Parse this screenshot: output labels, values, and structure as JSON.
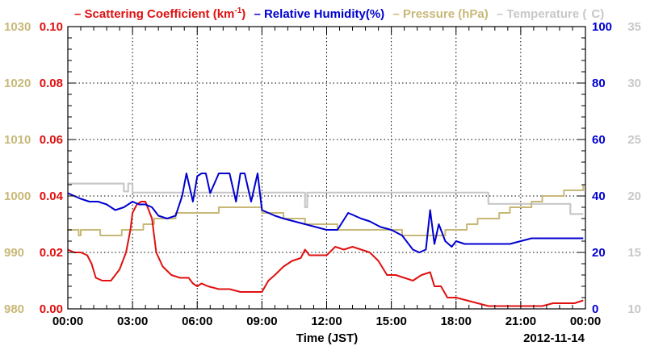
{
  "chart_data": {
    "type": "line",
    "x_range": [
      "00:00",
      "24:00"
    ],
    "x_ticks": [
      "00:00",
      "03:00",
      "06:00",
      "09:00",
      "12:00",
      "15:00",
      "18:00",
      "21:00",
      "00:00"
    ],
    "xlabel": "Time (JST)",
    "date_label": "2012-11-14",
    "axes": {
      "pressure": {
        "min": 980,
        "max": 1030,
        "ticks": [
          "980",
          "990",
          "1000",
          "1010",
          "1020",
          "1030"
        ],
        "color": "#c8b878"
      },
      "scattering": {
        "min": 0,
        "max": 0.1,
        "ticks": [
          "0.00",
          "0.02",
          "0.04",
          "0.06",
          "0.08",
          "0.10"
        ],
        "color": "#e01010"
      },
      "humidity": {
        "min": 0,
        "max": 100,
        "ticks": [
          "0",
          "20",
          "40",
          "60",
          "80",
          "100"
        ],
        "color": "#0000d0"
      },
      "temperature": {
        "min": 10,
        "max": 35,
        "ticks": [
          "10",
          "15",
          "20",
          "25",
          "30",
          "35"
        ],
        "color": "#c8c8c8"
      }
    },
    "grid": true,
    "legend": {
      "prefix": "– ",
      "scattering_main": "Scattering Coefficient (km",
      "scattering_sup": "-1",
      "scattering_end": ")",
      "humidity": "– Relative Humidity(%)",
      "pressure": "– Pressure (hPa)",
      "temperature": "– Temperature (",
      "temperature_end": "C)"
    },
    "series": [
      {
        "name": "Scattering Coefficient (km-1)",
        "axis": "scattering",
        "color": "#e01010",
        "x": [
          0.0,
          0.3,
          0.6,
          0.9,
          1.1,
          1.3,
          1.6,
          2.0,
          2.2,
          2.4,
          2.7,
          2.9,
          3.0,
          3.2,
          3.4,
          3.6,
          3.8,
          3.9,
          4.1,
          4.4,
          4.8,
          5.2,
          5.6,
          5.8,
          6.0,
          6.2,
          6.5,
          7.0,
          7.5,
          8.0,
          8.5,
          9.0,
          9.3,
          9.6,
          10.0,
          10.4,
          10.8,
          11.0,
          11.2,
          11.6,
          12.0,
          12.4,
          12.8,
          13.2,
          13.6,
          14.0,
          14.4,
          14.8,
          15.2,
          15.6,
          16.0,
          16.4,
          16.8,
          17.0,
          17.3,
          17.6,
          18.0,
          18.5,
          19.0,
          19.5,
          20.0,
          20.5,
          21.0,
          21.5,
          22.0,
          22.5,
          23.0,
          23.5,
          23.9
        ],
        "y": [
          0.021,
          0.02,
          0.02,
          0.019,
          0.016,
          0.011,
          0.01,
          0.01,
          0.012,
          0.014,
          0.02,
          0.028,
          0.034,
          0.037,
          0.038,
          0.038,
          0.034,
          0.032,
          0.02,
          0.015,
          0.012,
          0.011,
          0.011,
          0.009,
          0.008,
          0.009,
          0.008,
          0.007,
          0.007,
          0.006,
          0.006,
          0.006,
          0.01,
          0.012,
          0.015,
          0.017,
          0.018,
          0.021,
          0.019,
          0.019,
          0.019,
          0.022,
          0.021,
          0.022,
          0.021,
          0.02,
          0.017,
          0.012,
          0.012,
          0.011,
          0.01,
          0.012,
          0.013,
          0.008,
          0.008,
          0.004,
          0.004,
          0.003,
          0.002,
          0.001,
          0.001,
          0.001,
          0.001,
          0.001,
          0.001,
          0.002,
          0.002,
          0.002,
          0.003
        ]
      },
      {
        "name": "Relative Humidity(%)",
        "axis": "humidity",
        "color": "#0000d0",
        "x": [
          0.0,
          0.3,
          0.6,
          1.0,
          1.4,
          1.8,
          2.2,
          2.6,
          3.0,
          3.3,
          3.6,
          3.9,
          4.2,
          4.6,
          5.0,
          5.3,
          5.5,
          5.8,
          6.0,
          6.2,
          6.4,
          6.6,
          7.0,
          7.5,
          7.8,
          8.0,
          8.2,
          8.5,
          8.8,
          9.0,
          9.3,
          9.6,
          10.0,
          10.5,
          11.0,
          11.5,
          12.0,
          12.5,
          13.0,
          13.3,
          13.6,
          14.0,
          14.5,
          15.0,
          15.5,
          16.0,
          16.3,
          16.6,
          16.8,
          17.0,
          17.2,
          17.5,
          17.8,
          18.0,
          18.4,
          18.8,
          19.2,
          19.6,
          20.0,
          20.5,
          21.0,
          21.5,
          22.0,
          22.5,
          23.0,
          23.5,
          23.9
        ],
        "y": [
          41,
          40,
          39,
          38,
          38,
          37,
          35,
          36,
          38,
          37,
          37,
          36,
          33,
          32,
          33,
          40,
          48,
          38,
          47,
          48,
          48,
          41,
          48,
          48,
          38,
          48,
          48,
          38,
          48,
          35,
          34,
          33,
          32,
          31,
          30,
          29,
          28,
          28,
          34,
          33,
          32,
          31,
          29,
          28,
          26,
          21,
          20,
          21,
          35,
          23,
          30,
          24,
          22,
          24,
          23,
          23,
          23,
          23,
          23,
          23,
          24,
          25,
          25,
          25,
          25,
          25,
          25
        ]
      },
      {
        "name": "Pressure (hPa)",
        "axis": "pressure",
        "color": "#c8b878",
        "x": [
          0.0,
          0.5,
          0.6,
          1.0,
          1.5,
          2.0,
          2.5,
          3.0,
          3.5,
          4.0,
          4.5,
          5.0,
          5.5,
          6.0,
          6.5,
          7.0,
          7.5,
          8.0,
          8.5,
          9.0,
          9.5,
          10.0,
          10.5,
          11.0,
          11.5,
          12.0,
          12.5,
          13.0,
          13.5,
          14.0,
          14.5,
          15.0,
          15.5,
          16.0,
          16.5,
          17.0,
          17.5,
          18.0,
          18.5,
          19.0,
          19.5,
          20.0,
          20.5,
          21.0,
          21.5,
          22.0,
          22.5,
          23.0,
          23.5,
          23.9
        ],
        "y": [
          994,
          993,
          994,
          994,
          993,
          993,
          994,
          994,
          995,
          996,
          996,
          997,
          997,
          997,
          997,
          998,
          998,
          998,
          998,
          997,
          997,
          996,
          996,
          995,
          995,
          995,
          994,
          994,
          994,
          994,
          994,
          994,
          993,
          993,
          993,
          993,
          994,
          994,
          995,
          996,
          996,
          997,
          998,
          998,
          999,
          1000,
          1000,
          1001,
          1001,
          1002
        ]
      },
      {
        "name": "Temperature (C)",
        "axis": "temperature",
        "color": "#c8c8c8",
        "x": [
          0.0,
          1.0,
          2.0,
          2.6,
          2.8,
          3.0,
          4.0,
          5.0,
          6.0,
          7.0,
          8.0,
          9.0,
          10.0,
          10.9,
          11.0,
          11.1,
          12.0,
          13.0,
          14.0,
          15.0,
          16.0,
          17.0,
          18.0,
          18.5,
          19.0,
          19.5,
          20.0,
          21.0,
          22.0,
          22.5,
          23.0,
          23.3,
          23.9
        ],
        "y": [
          21.1,
          21.1,
          21.1,
          20.4,
          21.1,
          20.3,
          20.3,
          20.3,
          20.3,
          20.3,
          20.3,
          20.3,
          20.3,
          20.3,
          19.0,
          20.3,
          20.3,
          20.3,
          20.3,
          20.3,
          20.3,
          20.3,
          20.3,
          20.3,
          20.3,
          19.3,
          19.3,
          19.3,
          19.3,
          19.3,
          19.3,
          18.4,
          18.4
        ]
      }
    ]
  }
}
